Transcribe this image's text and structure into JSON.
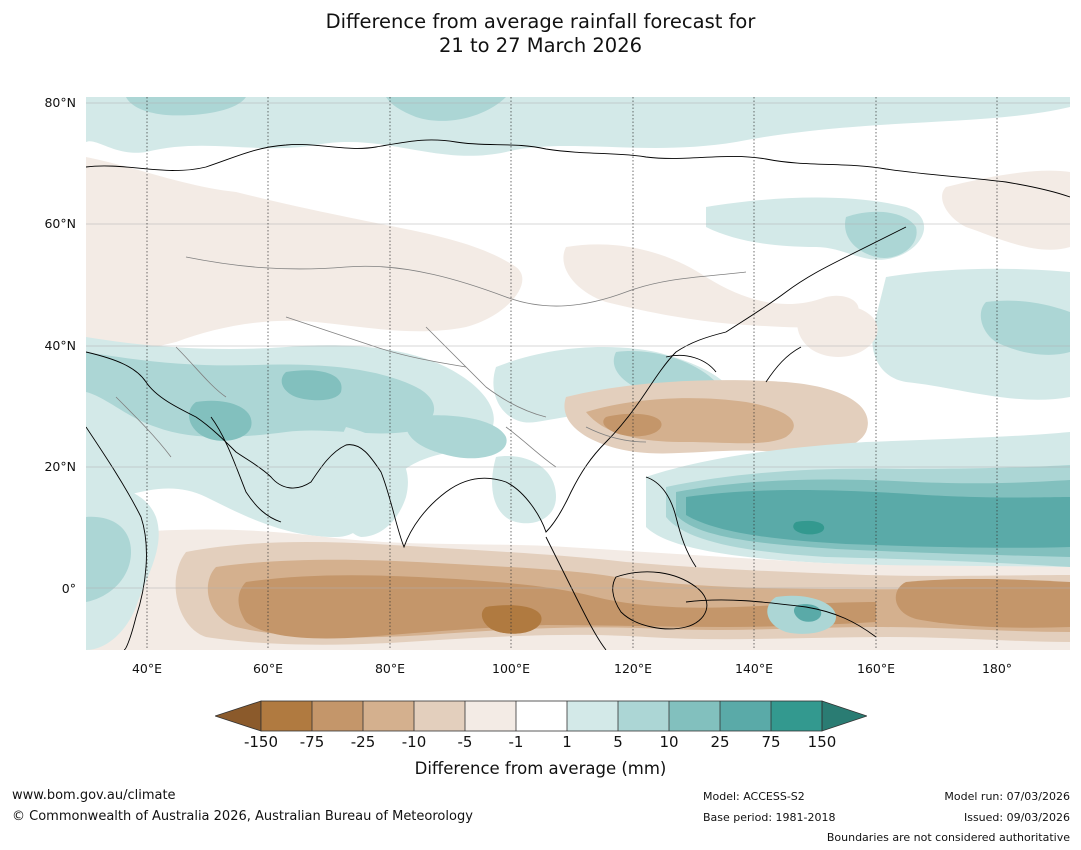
{
  "title": {
    "line1": "Difference from average rainfall forecast for",
    "line2": "21 to 27 March 2026"
  },
  "map": {
    "latitude_labels": [
      "80°N",
      "60°N",
      "40°N",
      "20°N",
      "0°"
    ],
    "longitude_labels": [
      "40°E",
      "60°E",
      "80°E",
      "100°E",
      "120°E",
      "140°E",
      "160°E",
      "180°"
    ],
    "extent": {
      "lon_min": 30,
      "lon_max": 192,
      "lat_min": -10,
      "lat_max": 81
    }
  },
  "legend": {
    "title": "Difference from average (mm)",
    "ticks": [
      "-150",
      "-75",
      "-25",
      "-10",
      "-5",
      "-1",
      "1",
      "5",
      "10",
      "25",
      "75",
      "150"
    ],
    "colors": [
      "#8b5a2b",
      "#b07a40",
      "#c4966a",
      "#d4b08e",
      "#e3cfbd",
      "#f3ebe5",
      "#ffffff",
      "#d3e9e8",
      "#acd6d5",
      "#82c0be",
      "#5aaaa8",
      "#33998f",
      "#2a7c73"
    ]
  },
  "footer": {
    "url": "www.bom.gov.au/climate",
    "copyright": "© Commonwealth of Australia 2026, Australian Bureau of Meteorology",
    "model": "Model: ACCESS-S2",
    "base_period": "Base period: 1981-2018",
    "model_run": "Model run: 07/03/2026",
    "issued": "Issued: 09/03/2026",
    "disclaimer": "Boundaries are not considered authoritative"
  }
}
